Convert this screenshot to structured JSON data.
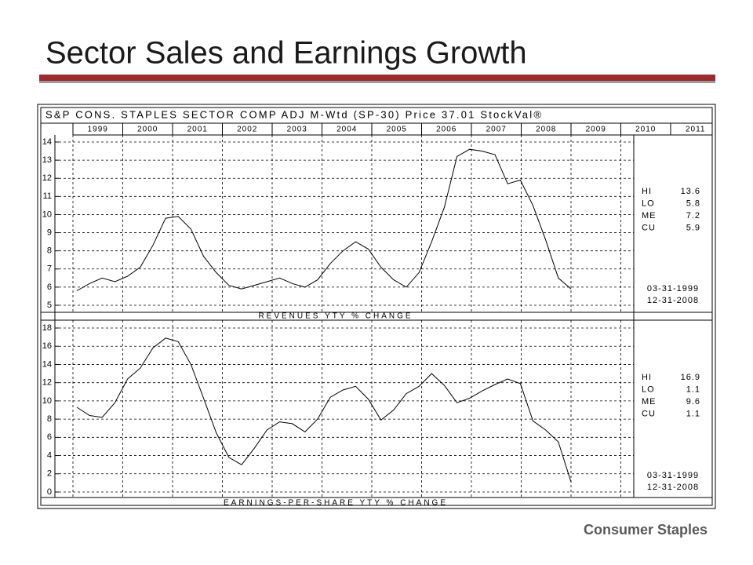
{
  "title": "Sector Sales and Earnings Growth",
  "footer": "Consumer Staples",
  "chart_header": "S&P CONS. STAPLES SECTOR COMP ADJ M-Wtd (SP-30) Price 37.01 StockVal®",
  "years": [
    1999,
    2000,
    2001,
    2002,
    2003,
    2004,
    2005,
    2006,
    2007,
    2008,
    2009,
    2010,
    2011
  ],
  "chart_data": [
    {
      "type": "line",
      "title": "REVENUES YTY % CHANGE",
      "color": "#000000",
      "values": [
        5.8,
        6.2,
        6.5,
        6.3,
        6.6,
        7.1,
        8.3,
        9.8,
        9.9,
        9.2,
        7.7,
        6.8,
        6.1,
        5.9,
        6.1,
        6.3,
        6.5,
        6.2,
        6.0,
        6.4,
        7.3,
        8.0,
        8.5,
        8.1,
        7.1,
        6.4,
        6.0,
        6.8,
        8.5,
        10.4,
        13.2,
        13.6,
        13.5,
        13.3,
        11.7,
        11.9,
        10.5,
        8.6,
        6.5,
        5.9
      ],
      "ylim": [
        5,
        14
      ],
      "yticks": [
        5,
        6,
        7,
        8,
        9,
        10,
        11,
        12,
        13,
        14
      ],
      "grid": true,
      "stats": [
        {
          "label": "HI",
          "value": 13.6
        },
        {
          "label": "LO",
          "value": 5.8
        },
        {
          "label": "ME",
          "value": 7.2
        },
        {
          "label": "CU",
          "value": 5.9
        }
      ],
      "date_range": [
        "03-31-1999",
        "12-31-2008"
      ]
    },
    {
      "type": "line",
      "title": "EARNINGS-PER-SHARE YTY % CHANGE",
      "color": "#000000",
      "values": [
        9.3,
        8.4,
        8.2,
        9.8,
        12.4,
        13.6,
        15.8,
        16.9,
        16.5,
        14.0,
        10.3,
        6.5,
        3.8,
        3.0,
        4.8,
        6.8,
        7.7,
        7.5,
        6.6,
        8.0,
        10.4,
        11.2,
        11.6,
        10.2,
        7.9,
        9.0,
        10.8,
        11.6,
        13.0,
        11.7,
        9.8,
        10.3,
        11.1,
        11.8,
        12.4,
        11.9,
        7.8,
        6.8,
        5.5,
        1.1
      ],
      "ylim": [
        0,
        18
      ],
      "yticks": [
        0,
        2,
        4,
        6,
        8,
        10,
        12,
        14,
        16,
        18
      ],
      "grid": true,
      "stats": [
        {
          "label": "HI",
          "value": 16.9
        },
        {
          "label": "LO",
          "value": 1.1
        },
        {
          "label": "ME",
          "value": 9.6
        },
        {
          "label": "CU",
          "value": 1.1
        }
      ],
      "date_range": [
        "03-31-1999",
        "12-31-2008"
      ]
    }
  ]
}
